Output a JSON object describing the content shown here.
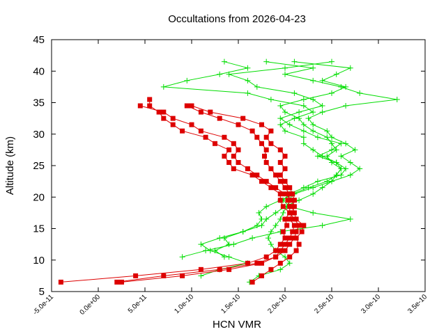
{
  "chart_data": {
    "type": "line",
    "title": "Occultations from 2026-04-23",
    "xlabel": "HCN VMR",
    "ylabel": "Altitude (km)",
    "xlim": [
      -5e-11,
      3.5e-10
    ],
    "ylim": [
      5,
      45
    ],
    "xticks": [
      "-5.0e-11",
      "0.0e+00",
      "5.0e-11",
      "1.0e-10",
      "1.5e-10",
      "2.0e-10",
      "2.5e-10",
      "3.0e-10",
      "3.5e-10"
    ],
    "yticks": [
      "5",
      "10",
      "15",
      "20",
      "25",
      "30",
      "35",
      "40",
      "45"
    ],
    "grid": false,
    "legend": "none",
    "series": [
      {
        "color": "#00dd00",
        "marker": "plus",
        "profiles": [
          [
            [
              1.62e-10,
              6.5
            ],
            [
              1.72e-10,
              7.5
            ],
            [
              1.95e-10,
              8.5
            ],
            [
              2.05e-10,
              9.5
            ],
            [
              2e-10,
              10.5
            ],
            [
              1.9e-10,
              11.5
            ],
            [
              1.85e-10,
              12.5
            ],
            [
              1.82e-10,
              13.5
            ],
            [
              1.85e-10,
              14.5
            ],
            [
              1.9e-10,
              15.5
            ],
            [
              1.95e-10,
              16.5
            ],
            [
              1.98e-10,
              17.5
            ],
            [
              2.02e-10,
              18.5
            ],
            [
              2.05e-10,
              19.5
            ],
            [
              2.08e-10,
              20.5
            ],
            [
              2.25e-10,
              21.5
            ],
            [
              2.45e-10,
              22.5
            ],
            [
              2.55e-10,
              23.5
            ],
            [
              2.6e-10,
              24.5
            ],
            [
              2.5e-10,
              25.5
            ],
            [
              2.45e-10,
              26.5
            ],
            [
              2.55e-10,
              27.5
            ],
            [
              2.5e-10,
              28.5
            ],
            [
              2.45e-10,
              29.5
            ],
            [
              2.3e-10,
              30.5
            ],
            [
              2.2e-10,
              31.5
            ],
            [
              2.15e-10,
              32.5
            ],
            [
              2e-10,
              33.5
            ],
            [
              1.95e-10,
              34.5
            ],
            [
              2.2e-10,
              35.5
            ],
            [
              2.5e-10,
              36.5
            ],
            [
              2.65e-10,
              37.5
            ],
            [
              2.4e-10,
              38.5
            ],
            [
              2.55e-10,
              39.5
            ],
            [
              2.7e-10,
              40.5
            ],
            [
              2.1e-10,
              41.5
            ]
          ],
          [
            [
              1.1e-10,
              7.5
            ],
            [
              1.3e-10,
              8.5
            ],
            [
              1.6e-10,
              9.5
            ],
            [
              1.4e-10,
              10.5
            ],
            [
              1.2e-10,
              11.5
            ],
            [
              1.1e-10,
              12.5
            ],
            [
              1.3e-10,
              13.5
            ],
            [
              1.55e-10,
              14.5
            ],
            [
              1.7e-10,
              15.5
            ],
            [
              1.75e-10,
              16.5
            ],
            [
              1.72e-10,
              17.5
            ],
            [
              1.8e-10,
              18.5
            ],
            [
              1.95e-10,
              19.5
            ],
            [
              2.1e-10,
              20.5
            ],
            [
              2.3e-10,
              21.5
            ],
            [
              2.5e-10,
              22.5
            ],
            [
              2.7e-10,
              23.5
            ],
            [
              2.8e-10,
              24.5
            ],
            [
              2.7e-10,
              25.5
            ],
            [
              2.6e-10,
              26.5
            ],
            [
              2.75e-10,
              27.5
            ],
            [
              2.65e-10,
              28.5
            ],
            [
              2.5e-10,
              29.5
            ],
            [
              2.45e-10,
              30.5
            ],
            [
              2.3e-10,
              31.5
            ],
            [
              2.25e-10,
              32.5
            ],
            [
              2.4e-10,
              33.5
            ],
            [
              2.65e-10,
              34.5
            ],
            [
              3.2e-10,
              35.5
            ],
            [
              2.8e-10,
              36.5
            ],
            [
              2.6e-10,
              37.5
            ],
            [
              2.3e-10,
              38.5
            ],
            [
              2e-10,
              39.5
            ],
            [
              2.3e-10,
              40.5
            ],
            [
              1.8e-10,
              41.5
            ]
          ],
          [
            [
              9e-11,
              10.5
            ],
            [
              1.15e-10,
              11.5
            ],
            [
              1.45e-10,
              12.5
            ],
            [
              1.65e-10,
              13.5
            ],
            [
              1.95e-10,
              14.5
            ],
            [
              2.4e-10,
              15.5
            ],
            [
              2.7e-10,
              16.5
            ],
            [
              2.3e-10,
              17.5
            ],
            [
              2.05e-10,
              18.5
            ],
            [
              1.98e-10,
              19.5
            ],
            [
              2.05e-10,
              20.5
            ],
            [
              2.2e-10,
              21.5
            ],
            [
              2.35e-10,
              22.5
            ],
            [
              2.6e-10,
              23.5
            ],
            [
              2.65e-10,
              24.5
            ],
            [
              2.55e-10,
              25.5
            ],
            [
              2.35e-10,
              26.5
            ],
            [
              2.5e-10,
              27.5
            ],
            [
              2.6e-10,
              28.5
            ],
            [
              2.35e-10,
              29.5
            ],
            [
              2.2e-10,
              30.5
            ],
            [
              2.05e-10,
              31.5
            ],
            [
              1.95e-10,
              32.5
            ],
            [
              2.15e-10,
              33.5
            ],
            [
              2.4e-10,
              34.5
            ],
            [
              2.3e-10,
              35.5
            ],
            [
              2.1e-10,
              36.5
            ],
            [
              1.7e-10,
              37.5
            ],
            [
              1.6e-10,
              38.5
            ],
            [
              1.4e-10,
              39.5
            ],
            [
              2e-10,
              40.5
            ],
            [
              2.5e-10,
              41.5
            ]
          ],
          [
            [
              1.35e-10,
              10.5
            ],
            [
              1.25e-10,
              11.5
            ],
            [
              1.4e-10,
              12.5
            ],
            [
              1.35e-10,
              13.5
            ],
            [
              1.55e-10,
              14.5
            ],
            [
              1.75e-10,
              15.5
            ],
            [
              1.8e-10,
              16.5
            ],
            [
              1.9e-10,
              17.5
            ],
            [
              2e-10,
              18.5
            ],
            [
              2.15e-10,
              19.5
            ],
            [
              2.3e-10,
              20.5
            ],
            [
              2.4e-10,
              21.5
            ],
            [
              2.5e-10,
              22.5
            ],
            [
              2.55e-10,
              23.5
            ],
            [
              2.6e-10,
              24.5
            ],
            [
              2.55e-10,
              25.5
            ],
            [
              2.4e-10,
              26.5
            ],
            [
              2.3e-10,
              27.5
            ],
            [
              2.2e-10,
              28.5
            ],
            [
              2.2e-10,
              29.5
            ],
            [
              2e-10,
              30.5
            ],
            [
              1.95e-10,
              31.5
            ],
            [
              2.1e-10,
              32.5
            ],
            [
              2.3e-10,
              33.5
            ],
            [
              2.2e-10,
              34.5
            ],
            [
              1.85e-10,
              35.5
            ],
            [
              1.6e-10,
              36.5
            ],
            [
              7e-11,
              37.5
            ],
            [
              9.5e-11,
              38.5
            ],
            [
              1.3e-10,
              39.5
            ],
            [
              1.6e-10,
              40.5
            ],
            [
              1.35e-10,
              41.5
            ]
          ]
        ]
      },
      {
        "color": "#dd0000",
        "marker": "square",
        "profiles": [
          [
            [
              -4e-11,
              6.5
            ],
            [
              4e-11,
              7.5
            ],
            [
              1.1e-10,
              8.5
            ],
            [
              1.6e-10,
              9.5
            ],
            [
              1.8e-10,
              10.5
            ],
            [
              1.9e-10,
              11.5
            ],
            [
              1.95e-10,
              12.5
            ],
            [
              2e-10,
              13.5
            ],
            [
              1.98e-10,
              14.5
            ],
            [
              2.02e-10,
              15.5
            ],
            [
              2e-10,
              16.5
            ],
            [
              2.05e-10,
              17.5
            ],
            [
              2.05e-10,
              18.5
            ],
            [
              2.03e-10,
              19.5
            ],
            [
              2.05e-10,
              20.5
            ],
            [
              2e-10,
              21.5
            ],
            [
              1.95e-10,
              22.5
            ],
            [
              1.9e-10,
              23.5
            ],
            [
              1.85e-10,
              24.5
            ],
            [
              1.8e-10,
              25.5
            ],
            [
              1.78e-10,
              26.5
            ],
            [
              1.8e-10,
              27.5
            ],
            [
              1.75e-10,
              28.5
            ],
            [
              1.7e-10,
              29.5
            ],
            [
              1.65e-10,
              30.5
            ],
            [
              1.5e-10,
              31.5
            ],
            [
              1.3e-10,
              32.5
            ],
            [
              1.1e-10,
              33.5
            ],
            [
              9.5e-11,
              34.5
            ]
          ],
          [
            [
              2e-11,
              6.5
            ],
            [
              7e-11,
              7.5
            ],
            [
              1.3e-10,
              8.5
            ],
            [
              1.7e-10,
              9.5
            ],
            [
              1.9e-10,
              10.5
            ],
            [
              1.95e-10,
              11.5
            ],
            [
              2e-10,
              12.5
            ],
            [
              2.05e-10,
              13.5
            ],
            [
              2.08e-10,
              14.5
            ],
            [
              2.1e-10,
              15.5
            ],
            [
              2.05e-10,
              16.5
            ],
            [
              2.08e-10,
              17.5
            ],
            [
              2.1e-10,
              18.5
            ],
            [
              2.08e-10,
              19.5
            ],
            [
              2e-10,
              20.5
            ],
            [
              1.9e-10,
              21.5
            ],
            [
              1.8e-10,
              22.5
            ],
            [
              1.7e-10,
              23.5
            ],
            [
              1.6e-10,
              24.5
            ],
            [
              1.5e-10,
              25.5
            ],
            [
              1.45e-10,
              26.5
            ],
            [
              1.5e-10,
              27.5
            ],
            [
              1.45e-10,
              28.5
            ],
            [
              1.35e-10,
              29.5
            ],
            [
              1.1e-10,
              30.5
            ],
            [
              1e-10,
              31.5
            ],
            [
              8e-11,
              32.5
            ],
            [
              7e-11,
              33.5
            ],
            [
              4.5e-11,
              34.5
            ]
          ],
          [
            [
              1.65e-10,
              6.5
            ],
            [
              1.75e-10,
              7.5
            ],
            [
              1.85e-10,
              8.5
            ],
            [
              1.95e-10,
              9.5
            ],
            [
              2.05e-10,
              10.5
            ],
            [
              2.12e-10,
              11.5
            ],
            [
              2.15e-10,
              12.5
            ],
            [
              2.12e-10,
              13.5
            ],
            [
              2.18e-10,
              14.5
            ],
            [
              2.2e-10,
              15.5
            ],
            [
              2.12e-10,
              16.5
            ],
            [
              2.1e-10,
              17.5
            ],
            [
              2.07e-10,
              18.5
            ],
            [
              2.1e-10,
              19.5
            ],
            [
              2.08e-10,
              20.5
            ],
            [
              2.05e-10,
              21.5
            ],
            [
              2e-10,
              22.5
            ],
            [
              1.95e-10,
              23.5
            ],
            [
              2e-10,
              24.5
            ],
            [
              1.95e-10,
              25.5
            ],
            [
              2e-10,
              26.5
            ],
            [
              1.95e-10,
              27.5
            ],
            [
              1.85e-10,
              28.5
            ],
            [
              1.8e-10,
              29.5
            ],
            [
              1.85e-10,
              30.5
            ],
            [
              1.75e-10,
              31.5
            ],
            [
              1.55e-10,
              32.5
            ],
            [
              1.2e-10,
              33.5
            ],
            [
              1e-10,
              34.5
            ]
          ],
          [
            [
              2.5e-11,
              6.5
            ],
            [
              9e-11,
              7.5
            ],
            [
              1.4e-10,
              8.5
            ],
            [
              1.75e-10,
              9.5
            ],
            [
              1.9e-10,
              10.5
            ],
            [
              2e-10,
              11.5
            ],
            [
              2.05e-10,
              12.5
            ],
            [
              2.1e-10,
              13.5
            ],
            [
              2.12e-10,
              14.5
            ],
            [
              2.15e-10,
              15.5
            ],
            [
              2.1e-10,
              16.5
            ],
            [
              2.05e-10,
              17.5
            ],
            [
              1.98e-10,
              18.5
            ],
            [
              1.95e-10,
              19.5
            ],
            [
              1.95e-10,
              20.5
            ],
            [
              1.85e-10,
              21.5
            ],
            [
              1.75e-10,
              22.5
            ],
            [
              1.65e-10,
              23.5
            ],
            [
              1.45e-10,
              24.5
            ],
            [
              1.4e-10,
              25.5
            ],
            [
              1.35e-10,
              26.5
            ],
            [
              1.4e-10,
              27.5
            ],
            [
              1.25e-10,
              28.5
            ],
            [
              1.15e-10,
              29.5
            ],
            [
              9e-11,
              30.5
            ],
            [
              8e-11,
              31.5
            ],
            [
              7e-11,
              32.5
            ],
            [
              6.5e-11,
              33.5
            ],
            [
              5.5e-11,
              34.5
            ],
            [
              5.5e-11,
              35.5
            ]
          ]
        ]
      }
    ]
  }
}
